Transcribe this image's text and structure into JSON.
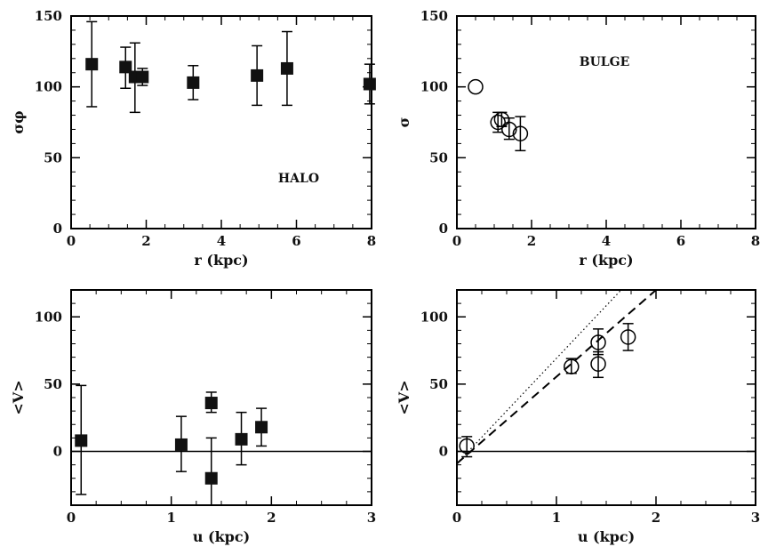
{
  "chart_data": [
    {
      "id": "halo-sigma",
      "type": "scatter",
      "xlabel": "r (kpc)",
      "ylabel": "σφ",
      "annotation": "HALO",
      "xlim": [
        0,
        8
      ],
      "ylim": [
        0,
        150
      ],
      "xticks": [
        0,
        2,
        4,
        6,
        8
      ],
      "yticks": [
        0,
        50,
        100,
        150
      ],
      "marker": "filled-square",
      "points": [
        {
          "x": 0.55,
          "y": 116,
          "lo": 86,
          "hi": 146
        },
        {
          "x": 1.45,
          "y": 114,
          "lo": 99,
          "hi": 128
        },
        {
          "x": 1.7,
          "y": 107,
          "lo": 82,
          "hi": 131
        },
        {
          "x": 1.9,
          "y": 107,
          "lo": 101,
          "hi": 113
        },
        {
          "x": 3.25,
          "y": 103,
          "lo": 91,
          "hi": 115
        },
        {
          "x": 4.95,
          "y": 108,
          "lo": 87,
          "hi": 129
        },
        {
          "x": 5.75,
          "y": 113,
          "lo": 87,
          "hi": 139
        },
        {
          "x": 7.95,
          "y": 102,
          "lo": 88,
          "hi": 116
        }
      ]
    },
    {
      "id": "bulge-sigma",
      "type": "scatter",
      "xlabel": "r (kpc)",
      "ylabel": "σ",
      "annotation": "BULGE",
      "xlim": [
        0,
        8
      ],
      "ylim": [
        0,
        150
      ],
      "xticks": [
        0,
        2,
        4,
        6,
        8
      ],
      "yticks": [
        0,
        50,
        100,
        150
      ],
      "marker": "open-circle",
      "points": [
        {
          "x": 0.5,
          "y": 100,
          "lo": 100,
          "hi": 100
        },
        {
          "x": 1.1,
          "y": 75,
          "lo": 68,
          "hi": 82
        },
        {
          "x": 1.2,
          "y": 77,
          "lo": 72,
          "hi": 82
        },
        {
          "x": 1.4,
          "y": 70,
          "lo": 63,
          "hi": 78
        },
        {
          "x": 1.7,
          "y": 67,
          "lo": 55,
          "hi": 79
        }
      ]
    },
    {
      "id": "halo-vel",
      "type": "scatter",
      "xlabel": "u (kpc)",
      "ylabel": "<V>",
      "xlim": [
        0,
        3
      ],
      "ylim": [
        -40,
        120
      ],
      "xticks": [
        0,
        1,
        2,
        3
      ],
      "yticks": [
        0,
        50,
        100
      ],
      "marker": "filled-square",
      "hline": 0,
      "points": [
        {
          "x": 0.1,
          "y": 8,
          "lo": -32,
          "hi": 49
        },
        {
          "x": 1.1,
          "y": 5,
          "lo": -15,
          "hi": 26
        },
        {
          "x": 1.4,
          "y": 36,
          "lo": 29,
          "hi": 44
        },
        {
          "x": 1.4,
          "y": -20,
          "lo": -40,
          "hi": 10
        },
        {
          "x": 1.7,
          "y": 9,
          "lo": -10,
          "hi": 29
        },
        {
          "x": 1.9,
          "y": 18,
          "lo": 4,
          "hi": 32
        }
      ]
    },
    {
      "id": "bulge-vel",
      "type": "scatter",
      "xlabel": "u (kpc)",
      "ylabel": "<V>",
      "xlim": [
        0,
        3
      ],
      "ylim": [
        -40,
        120
      ],
      "xticks": [
        0,
        1,
        2,
        3
      ],
      "yticks": [
        0,
        50,
        100
      ],
      "marker": "open-circle",
      "hline": 0,
      "points": [
        {
          "x": 0.1,
          "y": 4,
          "lo": -4,
          "hi": 11
        },
        {
          "x": 1.15,
          "y": 63,
          "lo": 58,
          "hi": 69
        },
        {
          "x": 1.42,
          "y": 81,
          "lo": 72,
          "hi": 91
        },
        {
          "x": 1.42,
          "y": 65,
          "lo": 55,
          "hi": 74
        },
        {
          "x": 1.72,
          "y": 85,
          "lo": 75,
          "hi": 95
        }
      ],
      "lines": [
        {
          "style": "dashed",
          "x1": 0,
          "y1": -9,
          "x2": 2.0,
          "y2": 120
        },
        {
          "style": "dotted",
          "x1": 0,
          "y1": -9,
          "x2": 1.65,
          "y2": 120
        }
      ]
    }
  ]
}
